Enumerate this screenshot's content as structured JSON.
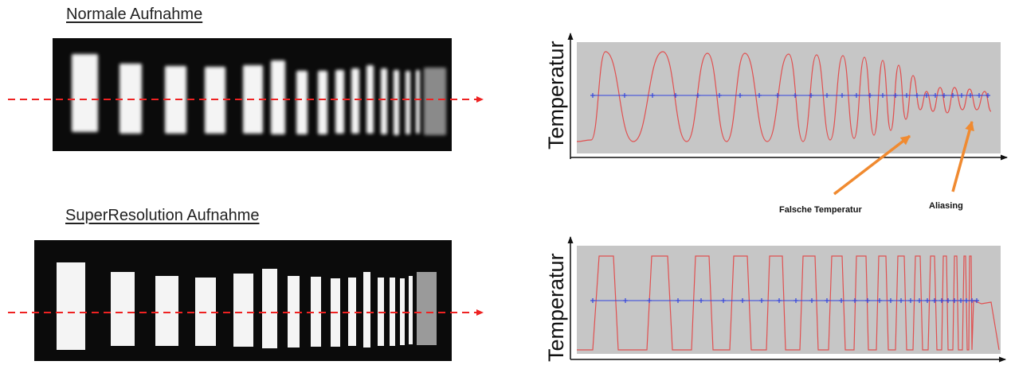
{
  "panels": {
    "normal": {
      "title": "Normale Aufnahme",
      "ylabel": "Temperatur",
      "image_style": "blurred"
    },
    "superres": {
      "title": "SuperResolution Aufnahme",
      "ylabel": "Temperatur",
      "image_style": "sharp"
    }
  },
  "annotations": {
    "false_temperature": "Falsche Temperatur",
    "aliasing": "Aliasing"
  },
  "colors": {
    "background": "#ffffff",
    "ir_background": "#0b0b0b",
    "plot_background": "#c6c6c6",
    "signal": "#e05050",
    "markers": "#3344dd",
    "scanline": "#ee2222",
    "arrows": "#f08a30"
  }
}
